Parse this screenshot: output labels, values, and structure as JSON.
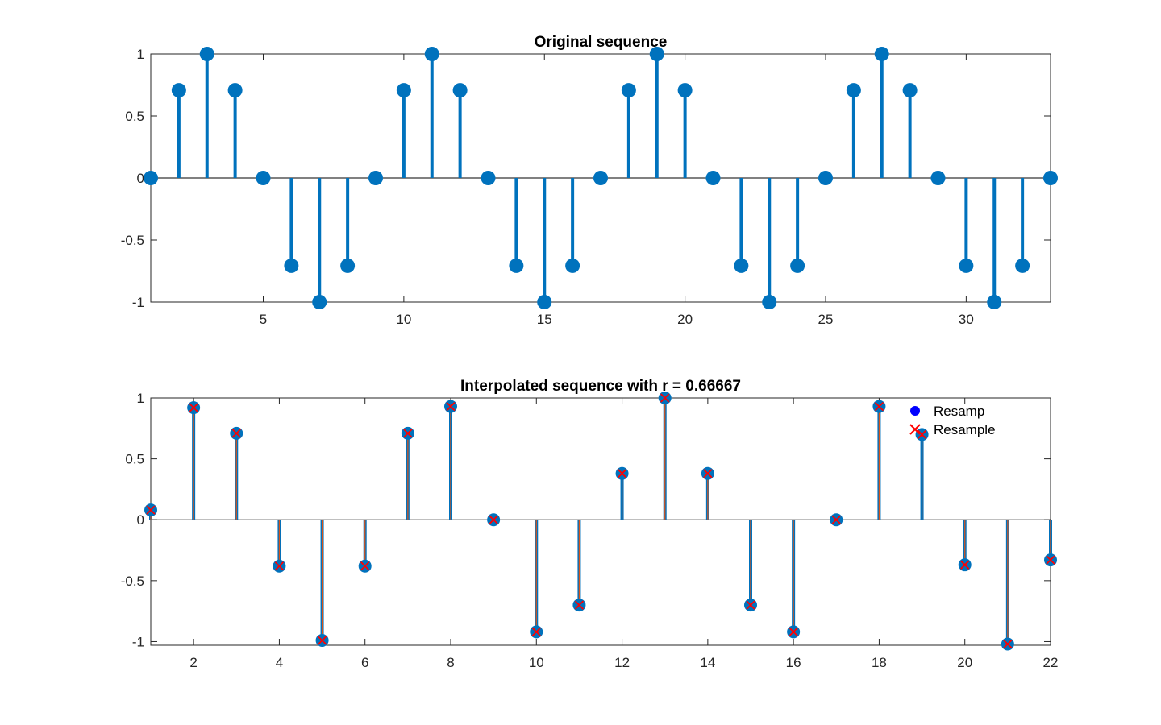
{
  "figure": {
    "background": "#ffffff",
    "axes_color": "#262626"
  },
  "chart_data": [
    {
      "type": "stem",
      "title": "Original sequence",
      "xlabel": "",
      "ylabel": "",
      "xlim": [
        1,
        33
      ],
      "ylim": [
        -1,
        1
      ],
      "xticks": [
        5,
        10,
        15,
        20,
        25,
        30
      ],
      "yticks": [
        -1,
        -0.5,
        0,
        0.5,
        1
      ],
      "xtick_labels": [
        "5",
        "10",
        "15",
        "20",
        "25",
        "30"
      ],
      "ytick_labels": [
        "-1",
        "-0.5",
        "0",
        "0.5",
        "1"
      ],
      "grid": false,
      "series": [
        {
          "color": "#0072BD",
          "marker": "filled-circle",
          "x": [
            1,
            2,
            3,
            4,
            5,
            6,
            7,
            8,
            9,
            10,
            11,
            12,
            13,
            14,
            15,
            16,
            17,
            18,
            19,
            20,
            21,
            22,
            23,
            24,
            25,
            26,
            27,
            28,
            29,
            30,
            31,
            32,
            33
          ],
          "values": [
            0,
            0.7071,
            1,
            0.7071,
            0,
            -0.7071,
            -1,
            -0.7071,
            0,
            0.7071,
            1,
            0.7071,
            0,
            -0.7071,
            -1,
            -0.7071,
            0,
            0.7071,
            1,
            0.7071,
            0,
            -0.7071,
            -1,
            -0.7071,
            0,
            0.7071,
            1,
            0.7071,
            0,
            -0.7071,
            -1,
            -0.7071,
            0
          ]
        }
      ]
    },
    {
      "type": "stem",
      "title": "Interpolated sequence with r = 0.66667",
      "xlabel": "",
      "ylabel": "",
      "xlim": [
        1,
        22
      ],
      "ylim": [
        -1.03,
        1
      ],
      "xticks": [
        2,
        4,
        6,
        8,
        10,
        12,
        14,
        16,
        18,
        20,
        22
      ],
      "yticks": [
        -1,
        -0.5,
        0,
        0.5,
        1
      ],
      "xtick_labels": [
        "2",
        "4",
        "6",
        "8",
        "10",
        "12",
        "14",
        "16",
        "18",
        "20",
        "22"
      ],
      "ytick_labels": [
        "-1",
        "-0.5",
        "0",
        "0.5",
        "1"
      ],
      "grid": false,
      "legend_position": "top-right",
      "series": [
        {
          "name": "Resamp",
          "color": "#0072BD",
          "marker": "filled-circle",
          "x": [
            1,
            2,
            3,
            4,
            5,
            6,
            7,
            8,
            9,
            10,
            11,
            12,
            13,
            14,
            15,
            16,
            17,
            18,
            19,
            20,
            21,
            22
          ],
          "values": [
            0.08,
            0.92,
            0.71,
            -0.38,
            -0.99,
            -0.38,
            0.71,
            0.93,
            0,
            -0.92,
            -0.7,
            0.38,
            1.0,
            0.38,
            -0.7,
            -0.92,
            0,
            0.93,
            0.7,
            -0.37,
            -1.02,
            -0.33
          ]
        },
        {
          "name": "Resample",
          "color": "#D95319",
          "marker": "x",
          "x": [
            1,
            2,
            3,
            4,
            5,
            6,
            7,
            8,
            9,
            10,
            11,
            12,
            13,
            14,
            15,
            16,
            17,
            18,
            19,
            20,
            21,
            22
          ],
          "values": [
            0.08,
            0.92,
            0.71,
            -0.38,
            -0.99,
            -0.38,
            0.71,
            0.93,
            0,
            -0.92,
            -0.7,
            0.38,
            1.0,
            0.38,
            -0.7,
            -0.92,
            0,
            0.93,
            0.7,
            -0.37,
            -1.02,
            -0.33
          ]
        }
      ],
      "legend": {
        "entries": [
          {
            "label": "Resamp",
            "color": "#0000FF",
            "marker": "filled-circle"
          },
          {
            "label": "Resample",
            "color": "#FF0000",
            "marker": "x"
          }
        ]
      }
    }
  ]
}
